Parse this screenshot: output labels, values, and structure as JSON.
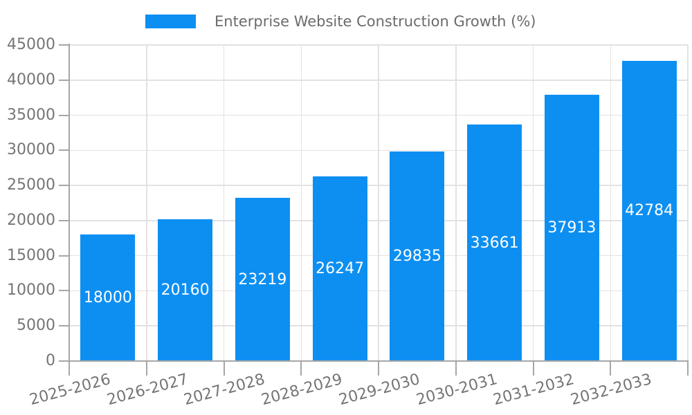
{
  "chart_data": {
    "type": "bar",
    "title": "Enterprise Website Construction Growth (%)",
    "legend": {
      "label": "Enterprise Website Construction Growth (%)",
      "position": "top-center"
    },
    "categories": [
      "2025-2026",
      "2026-2027",
      "2027-2028",
      "2028-2029",
      "2029-2030",
      "2030-2031",
      "2031-2032",
      "2032-2033"
    ],
    "values": [
      18000,
      20160,
      23219,
      26247,
      29835,
      33661,
      37913,
      42784
    ],
    "value_labels": [
      "18000",
      "20160",
      "23219",
      "26247",
      "29835",
      "33661",
      "37913",
      "42784"
    ],
    "xlabel": "",
    "ylabel": "",
    "ylim": [
      0,
      45000
    ],
    "yticks": [
      0,
      5000,
      10000,
      15000,
      20000,
      25000,
      30000,
      35000,
      40000,
      45000
    ],
    "grid": {
      "horizontal": true,
      "vertical": true
    },
    "bar_label_position": "center-inside",
    "x_tick_label_rotation_deg": -15,
    "colors": {
      "bar": "#0D8FF2",
      "gridline": "#E2E2E5",
      "axis": "#A6A6A6",
      "tick": "#A6A6A6",
      "tick_label": "#757575",
      "legend_text": "#6B6B6B",
      "bar_label": "#FFFFFF",
      "background": "#FFFFFF"
    }
  }
}
